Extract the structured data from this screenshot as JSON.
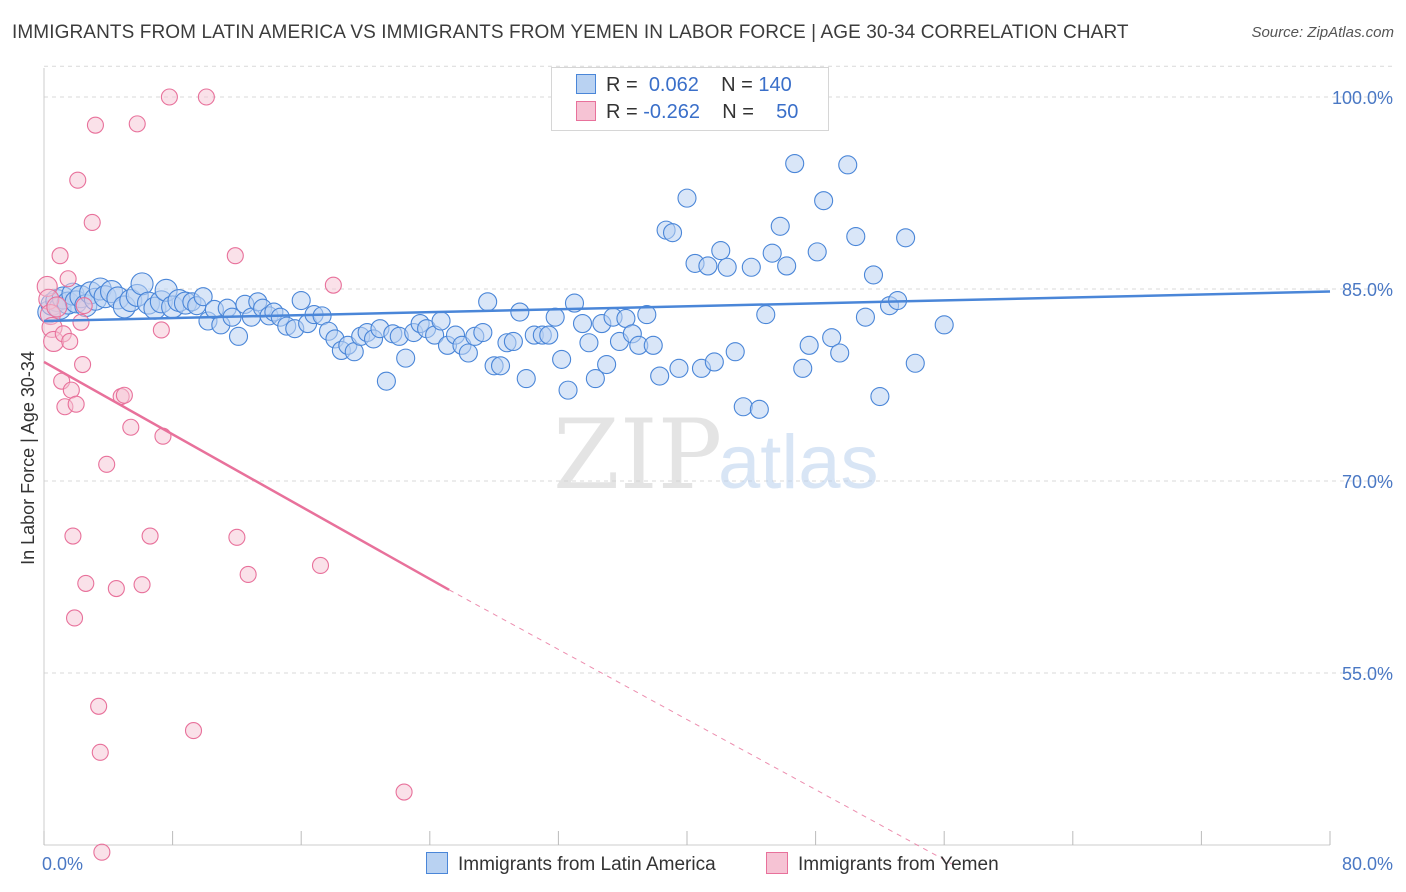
{
  "title": "IMMIGRANTS FROM LATIN AMERICA VS IMMIGRANTS FROM YEMEN IN LABOR FORCE | AGE 30-34 CORRELATION CHART",
  "source": "Source: ZipAtlas.com",
  "watermark": {
    "zip": "ZIP",
    "atlas": "atlas"
  },
  "colors": {
    "blue": "#4a86d8",
    "blue_fill": "#b9d2f2",
    "pink": "#e8719b",
    "pink_fill": "#f6c3d4",
    "grid": "#d9d9d9",
    "tick_text": "#4a78c4"
  },
  "legend": {
    "rows": [
      {
        "r_label": "R =",
        "r_value": "0.062",
        "n_label": "N =",
        "n_value": "140"
      },
      {
        "r_label": "R =",
        "r_value": "-0.262",
        "n_label": "N =",
        "n_value": "50"
      }
    ]
  },
  "bottom_legend": [
    "Immigrants from Latin America",
    "Immigrants from Yemen"
  ],
  "chart_data": {
    "type": "scatter",
    "title": "IMMIGRANTS FROM LATIN AMERICA VS IMMIGRANTS FROM YEMEN IN LABOR FORCE | AGE 30-34 CORRELATION CHART",
    "xlabel": "",
    "ylabel": "In Labor Force | Age 30-34",
    "xlim": [
      0,
      80
    ],
    "ylim": [
      40,
      103
    ],
    "x_tick_labels": [
      "0.0%",
      "80.0%"
    ],
    "y_ticks": [
      {
        "value": 100,
        "label": "100.0%"
      },
      {
        "value": 85,
        "label": "85.0%"
      },
      {
        "value": 70,
        "label": "70.0%"
      },
      {
        "value": 55,
        "label": "55.0%"
      }
    ],
    "grid": true,
    "legend_position": "top-center",
    "series": [
      {
        "name": "Immigrants from Latin America",
        "color": "#4a86d8",
        "trend": {
          "x": [
            0,
            80
          ],
          "y": [
            82.5,
            84.8
          ],
          "dashed_after": null
        },
        "points": [
          [
            0.3,
            83.2
          ],
          [
            0.5,
            83.8
          ],
          [
            0.8,
            84.1
          ],
          [
            1.0,
            83.5
          ],
          [
            1.2,
            84.3
          ],
          [
            1.5,
            83.9
          ],
          [
            1.8,
            84.6
          ],
          [
            2.0,
            84.0
          ],
          [
            2.3,
            84.4
          ],
          [
            2.6,
            83.7
          ],
          [
            2.9,
            84.7
          ],
          [
            3.2,
            84.2
          ],
          [
            3.5,
            85.0
          ],
          [
            3.8,
            84.4
          ],
          [
            4.2,
            84.8
          ],
          [
            4.6,
            84.3
          ],
          [
            5.0,
            83.6
          ],
          [
            5.4,
            84.1
          ],
          [
            5.8,
            84.5
          ],
          [
            6.1,
            85.4
          ],
          [
            6.5,
            83.9
          ],
          [
            6.9,
            83.5
          ],
          [
            7.3,
            84.0
          ],
          [
            7.6,
            84.9
          ],
          [
            8.0,
            83.6
          ],
          [
            8.4,
            84.1
          ],
          [
            8.8,
            83.9
          ],
          [
            9.2,
            84.0
          ],
          [
            9.5,
            83.7
          ],
          [
            9.9,
            84.4
          ],
          [
            10.2,
            82.5
          ],
          [
            10.6,
            83.4
          ],
          [
            11.0,
            82.2
          ],
          [
            11.4,
            83.5
          ],
          [
            11.7,
            82.8
          ],
          [
            12.1,
            81.3
          ],
          [
            12.5,
            83.8
          ],
          [
            12.9,
            82.8
          ],
          [
            13.3,
            84.0
          ],
          [
            13.6,
            83.5
          ],
          [
            14.0,
            82.9
          ],
          [
            14.3,
            83.2
          ],
          [
            14.7,
            82.8
          ],
          [
            15.1,
            82.1
          ],
          [
            15.6,
            81.9
          ],
          [
            16.0,
            84.1
          ],
          [
            16.4,
            82.3
          ],
          [
            16.8,
            83.0
          ],
          [
            17.3,
            82.9
          ],
          [
            17.7,
            81.7
          ],
          [
            18.1,
            81.1
          ],
          [
            18.5,
            80.2
          ],
          [
            18.9,
            80.6
          ],
          [
            19.3,
            80.1
          ],
          [
            19.7,
            81.3
          ],
          [
            20.1,
            81.6
          ],
          [
            20.5,
            81.1
          ],
          [
            20.9,
            81.9
          ],
          [
            21.3,
            77.8
          ],
          [
            21.7,
            81.5
          ],
          [
            22.1,
            81.3
          ],
          [
            22.5,
            79.6
          ],
          [
            23.0,
            81.6
          ],
          [
            23.4,
            82.3
          ],
          [
            23.8,
            81.9
          ],
          [
            24.3,
            81.4
          ],
          [
            24.7,
            82.5
          ],
          [
            25.1,
            80.6
          ],
          [
            25.6,
            81.4
          ],
          [
            26.0,
            80.6
          ],
          [
            26.4,
            80.0
          ],
          [
            26.8,
            81.3
          ],
          [
            27.3,
            81.6
          ],
          [
            27.6,
            84.0
          ],
          [
            28.0,
            79.0
          ],
          [
            28.4,
            79.0
          ],
          [
            28.8,
            80.8
          ],
          [
            29.2,
            80.9
          ],
          [
            29.6,
            83.2
          ],
          [
            30.0,
            78.0
          ],
          [
            30.5,
            81.4
          ],
          [
            31.0,
            81.4
          ],
          [
            31.4,
            81.4
          ],
          [
            31.8,
            82.8
          ],
          [
            32.2,
            79.5
          ],
          [
            32.6,
            77.1
          ],
          [
            33.0,
            83.9
          ],
          [
            33.5,
            82.3
          ],
          [
            33.9,
            80.8
          ],
          [
            34.3,
            78.0
          ],
          [
            34.7,
            82.3
          ],
          [
            35.0,
            79.1
          ],
          [
            35.4,
            82.8
          ],
          [
            35.8,
            80.9
          ],
          [
            36.2,
            82.7
          ],
          [
            36.6,
            81.5
          ],
          [
            37.0,
            80.6
          ],
          [
            37.5,
            83.0
          ],
          [
            37.9,
            80.6
          ],
          [
            38.3,
            78.2
          ],
          [
            38.7,
            89.6
          ],
          [
            39.1,
            89.4
          ],
          [
            39.5,
            78.8
          ],
          [
            40.0,
            92.1
          ],
          [
            40.5,
            87.0
          ],
          [
            40.9,
            78.8
          ],
          [
            41.3,
            86.8
          ],
          [
            41.7,
            79.3
          ],
          [
            42.1,
            88.0
          ],
          [
            42.5,
            86.7
          ],
          [
            43.0,
            80.1
          ],
          [
            43.5,
            75.8
          ],
          [
            44.0,
            86.7
          ],
          [
            44.5,
            75.6
          ],
          [
            44.9,
            83.0
          ],
          [
            45.3,
            87.8
          ],
          [
            45.8,
            89.9
          ],
          [
            46.2,
            86.8
          ],
          [
            46.7,
            94.8
          ],
          [
            47.2,
            78.8
          ],
          [
            47.6,
            80.6
          ],
          [
            48.1,
            87.9
          ],
          [
            48.5,
            91.9
          ],
          [
            49.0,
            81.2
          ],
          [
            49.5,
            80.0
          ],
          [
            50.0,
            94.7
          ],
          [
            50.5,
            89.1
          ],
          [
            51.1,
            82.8
          ],
          [
            51.6,
            86.1
          ],
          [
            52.0,
            76.6
          ],
          [
            52.6,
            83.7
          ],
          [
            53.1,
            84.1
          ],
          [
            53.6,
            89.0
          ],
          [
            54.2,
            79.2
          ],
          [
            56.0,
            82.2
          ]
        ]
      },
      {
        "name": "Immigrants from Yemen",
        "color": "#e8719b",
        "trend": {
          "x": [
            0,
            25.2
          ],
          "y": [
            79.3,
            61.5
          ],
          "dashed_until": [
            56.6,
            40.0
          ]
        },
        "points": [
          [
            0.2,
            85.2
          ],
          [
            0.3,
            84.2
          ],
          [
            0.4,
            83.0
          ],
          [
            0.5,
            82.0
          ],
          [
            0.6,
            80.9
          ],
          [
            0.8,
            83.6
          ],
          [
            1.0,
            87.6
          ],
          [
            1.1,
            77.8
          ],
          [
            1.2,
            81.5
          ],
          [
            1.3,
            75.8
          ],
          [
            1.5,
            85.8
          ],
          [
            1.6,
            80.9
          ],
          [
            1.7,
            77.1
          ],
          [
            1.8,
            65.7
          ],
          [
            1.9,
            59.3
          ],
          [
            2.0,
            76.0
          ],
          [
            2.1,
            93.5
          ],
          [
            2.3,
            82.4
          ],
          [
            2.4,
            79.1
          ],
          [
            2.5,
            83.7
          ],
          [
            2.6,
            62.0
          ],
          [
            3.0,
            90.2
          ],
          [
            3.2,
            97.8
          ],
          [
            3.4,
            52.4
          ],
          [
            3.5,
            48.8
          ],
          [
            3.6,
            41.0
          ],
          [
            3.9,
            71.3
          ],
          [
            4.5,
            61.6
          ],
          [
            4.8,
            76.6
          ],
          [
            5.0,
            76.7
          ],
          [
            5.4,
            74.2
          ],
          [
            5.8,
            97.9
          ],
          [
            6.1,
            61.9
          ],
          [
            6.6,
            65.7
          ],
          [
            7.3,
            81.8
          ],
          [
            7.4,
            73.5
          ],
          [
            7.8,
            100.0
          ],
          [
            9.3,
            50.5
          ],
          [
            10.1,
            100.0
          ],
          [
            11.9,
            87.6
          ],
          [
            12.0,
            65.6
          ],
          [
            12.7,
            62.7
          ],
          [
            17.2,
            63.4
          ],
          [
            18.0,
            85.3
          ],
          [
            22.4,
            45.7
          ]
        ]
      }
    ]
  }
}
